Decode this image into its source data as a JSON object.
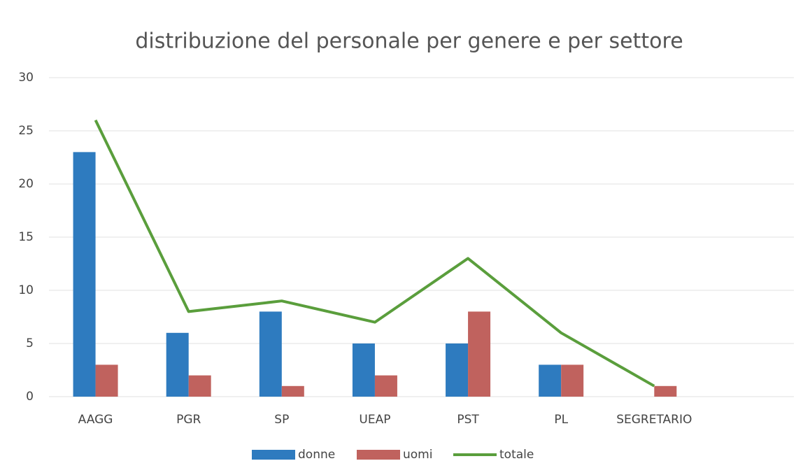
{
  "chart_data": {
    "type": "bar",
    "title": "distribuzione del personale per genere e per settore",
    "categories": [
      "AAGG",
      "PGR",
      "SP",
      "UEAP",
      "PST",
      "PL",
      "SEGRETARIO",
      null
    ],
    "series": [
      {
        "name": "donne",
        "color": "#2e7bbf",
        "values": [
          23,
          6,
          8,
          5,
          5,
          3,
          0,
          null
        ]
      },
      {
        "name": "uomi",
        "color": "#c0625e",
        "values": [
          3,
          2,
          1,
          2,
          8,
          3,
          1,
          null
        ]
      },
      {
        "name": "totale",
        "type": "line",
        "color": "#5a9e3c",
        "values": [
          26,
          8,
          9,
          7,
          13,
          6,
          1,
          null
        ]
      }
    ],
    "ylim": [
      0,
      30
    ],
    "yticks": [
      0,
      5,
      10,
      15,
      20,
      25,
      30
    ],
    "grid": true,
    "legend": "bottom"
  }
}
